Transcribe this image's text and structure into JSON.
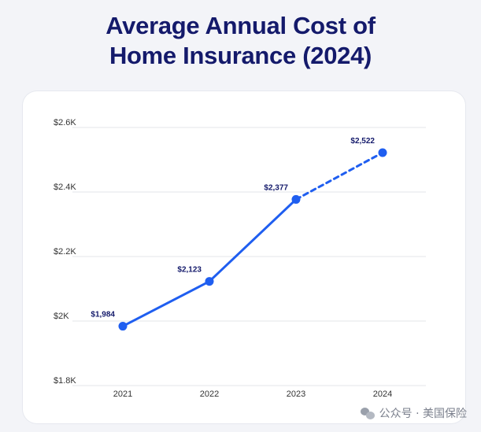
{
  "header": {
    "title_line1": "Average Annual Cost of",
    "title_line2": "Home Insurance (2024)"
  },
  "watermark": {
    "text": "公众号 · 美国保险",
    "icon": "wechat-icon"
  },
  "colors": {
    "title": "#141a6b",
    "line": "#1f5ef0",
    "label": "#141a6b",
    "grid": "#e3e5ea",
    "tick": "#333333"
  },
  "chart_data": {
    "type": "line",
    "title": "Average Annual Cost of Home Insurance (2024)",
    "xlabel": "",
    "ylabel": "",
    "categories": [
      "2021",
      "2022",
      "2023",
      "2024"
    ],
    "values": [
      1984,
      2123,
      2377,
      2522
    ],
    "data_labels": [
      "$1,984",
      "$2,123",
      "$2,377",
      "$2,522"
    ],
    "projected_from_index": 2,
    "ylim": [
      1800,
      2600
    ],
    "yticks": [
      1800,
      2000,
      2200,
      2400,
      2600
    ],
    "ytick_labels": [
      "$1.8K",
      "$2K",
      "$2.2K",
      "$2.4K",
      "$2.6K"
    ],
    "grid": true,
    "legend": "none"
  }
}
